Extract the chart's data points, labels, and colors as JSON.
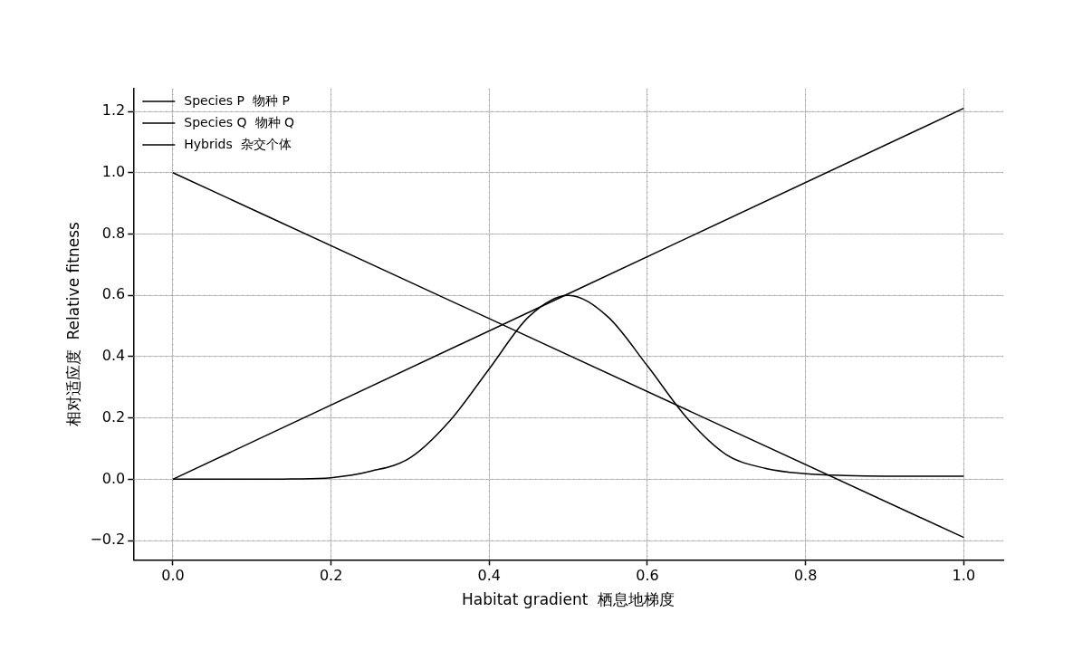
{
  "chart_data": {
    "type": "line",
    "xlabel": "Habitat gradient  栖息地梯度",
    "ylabel": "相对适应度  Relative fitness",
    "xlim": [
      -0.05,
      1.05
    ],
    "ylim": [
      -0.263,
      1.274
    ],
    "xticks": [
      {
        "value": 0,
        "label": "0.0"
      },
      {
        "value": 0.2,
        "label": "0.2"
      },
      {
        "value": 0.4,
        "label": "0.4"
      },
      {
        "value": 0.6,
        "label": "0.6"
      },
      {
        "value": 0.8,
        "label": "0.8"
      },
      {
        "value": 1,
        "label": "1.0"
      }
    ],
    "yticks": [
      {
        "value": -0.2,
        "label": "−0.2"
      },
      {
        "value": 0,
        "label": "0.0"
      },
      {
        "value": 0.2,
        "label": "0.2"
      },
      {
        "value": 0.4,
        "label": "0.4"
      },
      {
        "value": 0.6,
        "label": "0.6"
      },
      {
        "value": 0.8,
        "label": "0.8"
      },
      {
        "value": 1,
        "label": "1.0"
      },
      {
        "value": 1.2,
        "label": "1.2"
      }
    ],
    "grid": true,
    "legend": "top left",
    "marker": "none",
    "line_style": "solid",
    "series": [
      {
        "name": "Species P  物种 P",
        "color": "#000000",
        "x": [
          0,
          1
        ],
        "values": [
          1.0,
          -0.19
        ]
      },
      {
        "name": "Species Q  物种 Q",
        "color": "#000000",
        "x": [
          0,
          1
        ],
        "values": [
          0,
          1.21
        ]
      },
      {
        "name": "Hybrids  杂交个体",
        "color": "#000000",
        "x": [
          0,
          0.1,
          0.15,
          0.2,
          0.25,
          0.3,
          0.35,
          0.4,
          0.45,
          0.5,
          0.55,
          0.6,
          0.65,
          0.7,
          0.75,
          0.8,
          0.85,
          0.9,
          1.0
        ],
        "values": [
          0,
          0,
          0.001,
          0.005,
          0.026,
          0.07,
          0.19,
          0.36,
          0.53,
          0.6,
          0.53,
          0.37,
          0.2,
          0.08,
          0.035,
          0.018,
          0.012,
          0.01,
          0.01
        ]
      }
    ]
  }
}
